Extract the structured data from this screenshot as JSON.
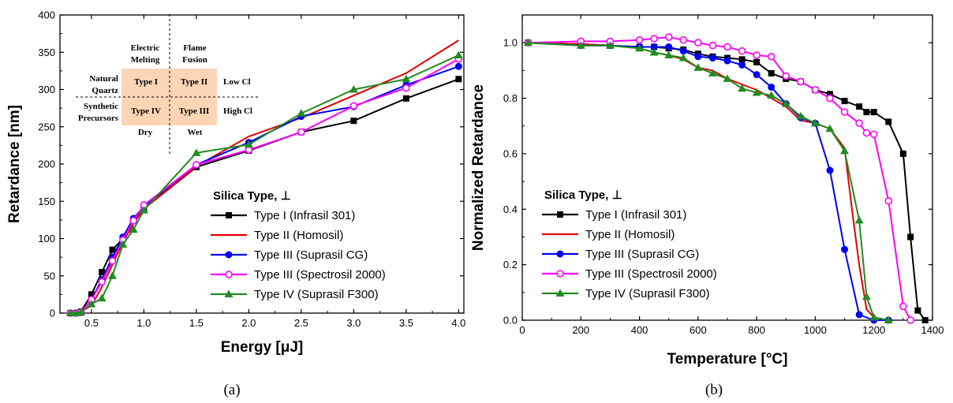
{
  "panels": [
    {
      "panel_label": "(a)",
      "legend_title": "Silica Type, ⊥",
      "inset": {
        "col_headers": [
          [
            "Electric",
            "Melting"
          ],
          [
            "Flame",
            "Fusion"
          ]
        ],
        "row_headers": [
          [
            "Natural",
            "Quartz"
          ],
          [
            "Synthetic",
            "Precursors"
          ]
        ],
        "cells": [
          [
            "Type I",
            "Type II"
          ],
          [
            "Type IV",
            "Type III"
          ]
        ],
        "right_labels": [
          "Low Cl",
          "High Cl"
        ],
        "bottom_labels": [
          "Dry",
          "Wet"
        ],
        "cell_color": "#fbd5b5"
      }
    },
    {
      "panel_label": "(b)",
      "legend_title": "Silica Type, ⊥"
    }
  ],
  "chart_data": [
    {
      "type": "line",
      "xlabel": "Energy [μJ]",
      "ylabel": "Retardance [nm]",
      "xlim": [
        0.2,
        4.05
      ],
      "ylim": [
        0,
        400
      ],
      "xticks": [
        "0.5",
        "1.0",
        "1.5",
        "2.0",
        "2.5",
        "3.0",
        "3.5",
        "4.0"
      ],
      "yticks": [
        "0",
        "50",
        "100",
        "150",
        "200",
        "250",
        "300",
        "350",
        "400"
      ],
      "legend_position": "bottom-right",
      "series": [
        {
          "name": "Type I (Infrasil 301)",
          "color": "#000000",
          "marker": "square-filled",
          "x": [
            0.3,
            0.35,
            0.4,
            0.5,
            0.6,
            0.7,
            0.8,
            0.9,
            1.0,
            1.5,
            2.0,
            2.5,
            3.0,
            3.5,
            4.0
          ],
          "y": [
            0,
            0,
            2,
            25,
            55,
            85,
            100,
            125,
            140,
            196,
            218,
            243,
            258,
            288,
            314
          ]
        },
        {
          "name": "Type II (Homosil)",
          "color": "#e00000",
          "marker": "none",
          "x": [
            0.4,
            0.5,
            0.6,
            0.7,
            0.8,
            0.9,
            1.0,
            1.5,
            2.0,
            2.5,
            3.0,
            3.5,
            4.0
          ],
          "y": [
            2,
            10,
            35,
            65,
            95,
            120,
            140,
            197,
            237,
            262,
            292,
            322,
            366
          ]
        },
        {
          "name": "Type III (Suprasil CG)",
          "color": "#0000ee",
          "marker": "circle-filled",
          "x": [
            0.3,
            0.35,
            0.4,
            0.5,
            0.6,
            0.7,
            0.8,
            0.9,
            1.0,
            1.5,
            2.0,
            2.5,
            3.0,
            3.5,
            4.0
          ],
          "y": [
            0,
            0,
            1,
            18,
            45,
            75,
            102,
            127,
            143,
            199,
            229,
            264,
            277,
            306,
            331
          ]
        },
        {
          "name": "Type III (Spectrosil 2000)",
          "color": "#ff00ff",
          "marker": "circle-open",
          "x": [
            0.3,
            0.35,
            0.4,
            0.5,
            0.6,
            0.7,
            0.8,
            0.9,
            1.0,
            1.5,
            2.0,
            2.5,
            3.0,
            3.5,
            4.0
          ],
          "y": [
            0,
            0,
            1,
            18,
            42,
            70,
            98,
            124,
            145,
            199,
            219,
            243,
            278,
            302,
            341
          ]
        },
        {
          "name": "Type IV (Suprasil F300)",
          "color": "#228b22",
          "marker": "triangle-filled",
          "x": [
            0.3,
            0.35,
            0.4,
            0.5,
            0.6,
            0.7,
            0.8,
            0.9,
            1.0,
            1.5,
            2.0,
            2.5,
            3.0,
            3.5,
            4.0
          ],
          "y": [
            0,
            0,
            1,
            12,
            20,
            50,
            92,
            112,
            138,
            215,
            226,
            268,
            300,
            314,
            346
          ]
        }
      ]
    },
    {
      "type": "line",
      "xlabel": "Temperature [°C]",
      "ylabel": "Normalized Retardance",
      "xlim": [
        0,
        1400
      ],
      "ylim": [
        0,
        1.1
      ],
      "xticks": [
        "0",
        "200",
        "400",
        "600",
        "800",
        "1000",
        "1200",
        "1400"
      ],
      "yticks": [
        "0.0",
        "0.2",
        "0.4",
        "0.6",
        "0.8",
        "1.0"
      ],
      "legend_position": "bottom-left",
      "series": [
        {
          "name": "Type I (Infrasil 301)",
          "color": "#000000",
          "marker": "square-filled",
          "x": [
            20,
            200,
            300,
            400,
            450,
            500,
            550,
            600,
            650,
            700,
            750,
            800,
            850,
            900,
            950,
            1000,
            1050,
            1100,
            1150,
            1175,
            1200,
            1250,
            1300,
            1325,
            1350,
            1375
          ],
          "y": [
            1.0,
            0.995,
            0.99,
            0.985,
            0.985,
            0.98,
            0.975,
            0.96,
            0.95,
            0.945,
            0.94,
            0.93,
            0.89,
            0.87,
            0.86,
            0.83,
            0.815,
            0.79,
            0.77,
            0.75,
            0.75,
            0.715,
            0.6,
            0.3,
            0.035,
            0.0
          ]
        },
        {
          "name": "Type II (Homosil)",
          "color": "#e00000",
          "marker": "none",
          "x": [
            20,
            200,
            300,
            400,
            450,
            500,
            550,
            600,
            650,
            700,
            750,
            800,
            850,
            900,
            950,
            1000,
            1050,
            1100,
            1125,
            1150,
            1175,
            1200,
            1250
          ],
          "y": [
            1.0,
            0.995,
            0.99,
            0.98,
            0.965,
            0.955,
            0.94,
            0.91,
            0.9,
            0.87,
            0.85,
            0.83,
            0.8,
            0.77,
            0.72,
            0.71,
            0.69,
            0.62,
            0.4,
            0.2,
            0.04,
            0.01,
            0.0
          ]
        },
        {
          "name": "Type III (Suprasil CG)",
          "color": "#0000ee",
          "marker": "circle-filled",
          "x": [
            20,
            200,
            300,
            400,
            450,
            500,
            550,
            600,
            650,
            700,
            750,
            800,
            850,
            900,
            950,
            1000,
            1050,
            1100,
            1150,
            1200,
            1250
          ],
          "y": [
            1.0,
            0.99,
            0.99,
            0.985,
            0.985,
            0.985,
            0.97,
            0.95,
            0.945,
            0.935,
            0.92,
            0.885,
            0.84,
            0.78,
            0.73,
            0.71,
            0.54,
            0.255,
            0.02,
            0.0,
            0.0
          ]
        },
        {
          "name": "Type III (Spectrosil 2000)",
          "color": "#ff00ff",
          "marker": "circle-open",
          "x": [
            20,
            200,
            300,
            400,
            450,
            500,
            550,
            600,
            650,
            700,
            750,
            800,
            850,
            900,
            950,
            1000,
            1050,
            1100,
            1150,
            1175,
            1200,
            1250,
            1300,
            1325
          ],
          "y": [
            1.0,
            1.005,
            1.005,
            1.01,
            1.015,
            1.02,
            1.01,
            1.0,
            0.99,
            0.985,
            0.97,
            0.955,
            0.95,
            0.88,
            0.86,
            0.83,
            0.8,
            0.75,
            0.71,
            0.675,
            0.67,
            0.43,
            0.05,
            0.0
          ]
        },
        {
          "name": "Type IV (Suprasil F300)",
          "color": "#228b22",
          "marker": "triangle-filled",
          "x": [
            20,
            200,
            300,
            400,
            450,
            500,
            550,
            600,
            650,
            700,
            750,
            800,
            850,
            900,
            950,
            1000,
            1050,
            1100,
            1150,
            1175,
            1200,
            1250
          ],
          "y": [
            1.0,
            0.99,
            0.99,
            0.98,
            0.965,
            0.955,
            0.945,
            0.91,
            0.89,
            0.87,
            0.835,
            0.82,
            0.81,
            0.78,
            0.735,
            0.71,
            0.69,
            0.61,
            0.36,
            0.085,
            0.01,
            0.0
          ]
        }
      ]
    }
  ]
}
